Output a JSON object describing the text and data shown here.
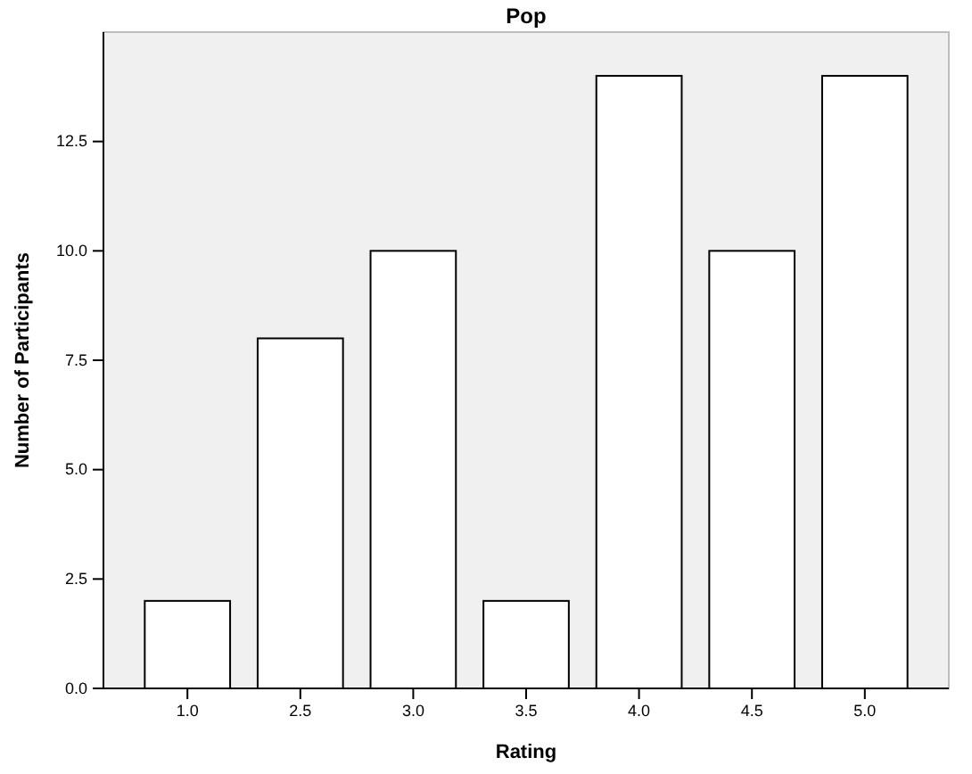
{
  "chart_data": {
    "type": "bar",
    "title": "Pop",
    "xlabel": "Rating",
    "ylabel": "Number of Participants",
    "categories": [
      "1.0",
      "2.5",
      "3.0",
      "3.5",
      "4.0",
      "4.5",
      "5.0"
    ],
    "values": [
      2,
      8,
      10,
      2,
      14,
      10,
      14
    ],
    "color": "#ffffff",
    "ylim": [
      0,
      15
    ],
    "yticks": [
      {
        "value": 0,
        "label": "0.0"
      },
      {
        "value": 2.5,
        "label": "2.5"
      },
      {
        "value": 5,
        "label": "5.0"
      },
      {
        "value": 7.5,
        "label": "7.5"
      },
      {
        "value": 10,
        "label": "10.0"
      },
      {
        "value": 12.5,
        "label": "12.5"
      }
    ],
    "grid": false
  }
}
